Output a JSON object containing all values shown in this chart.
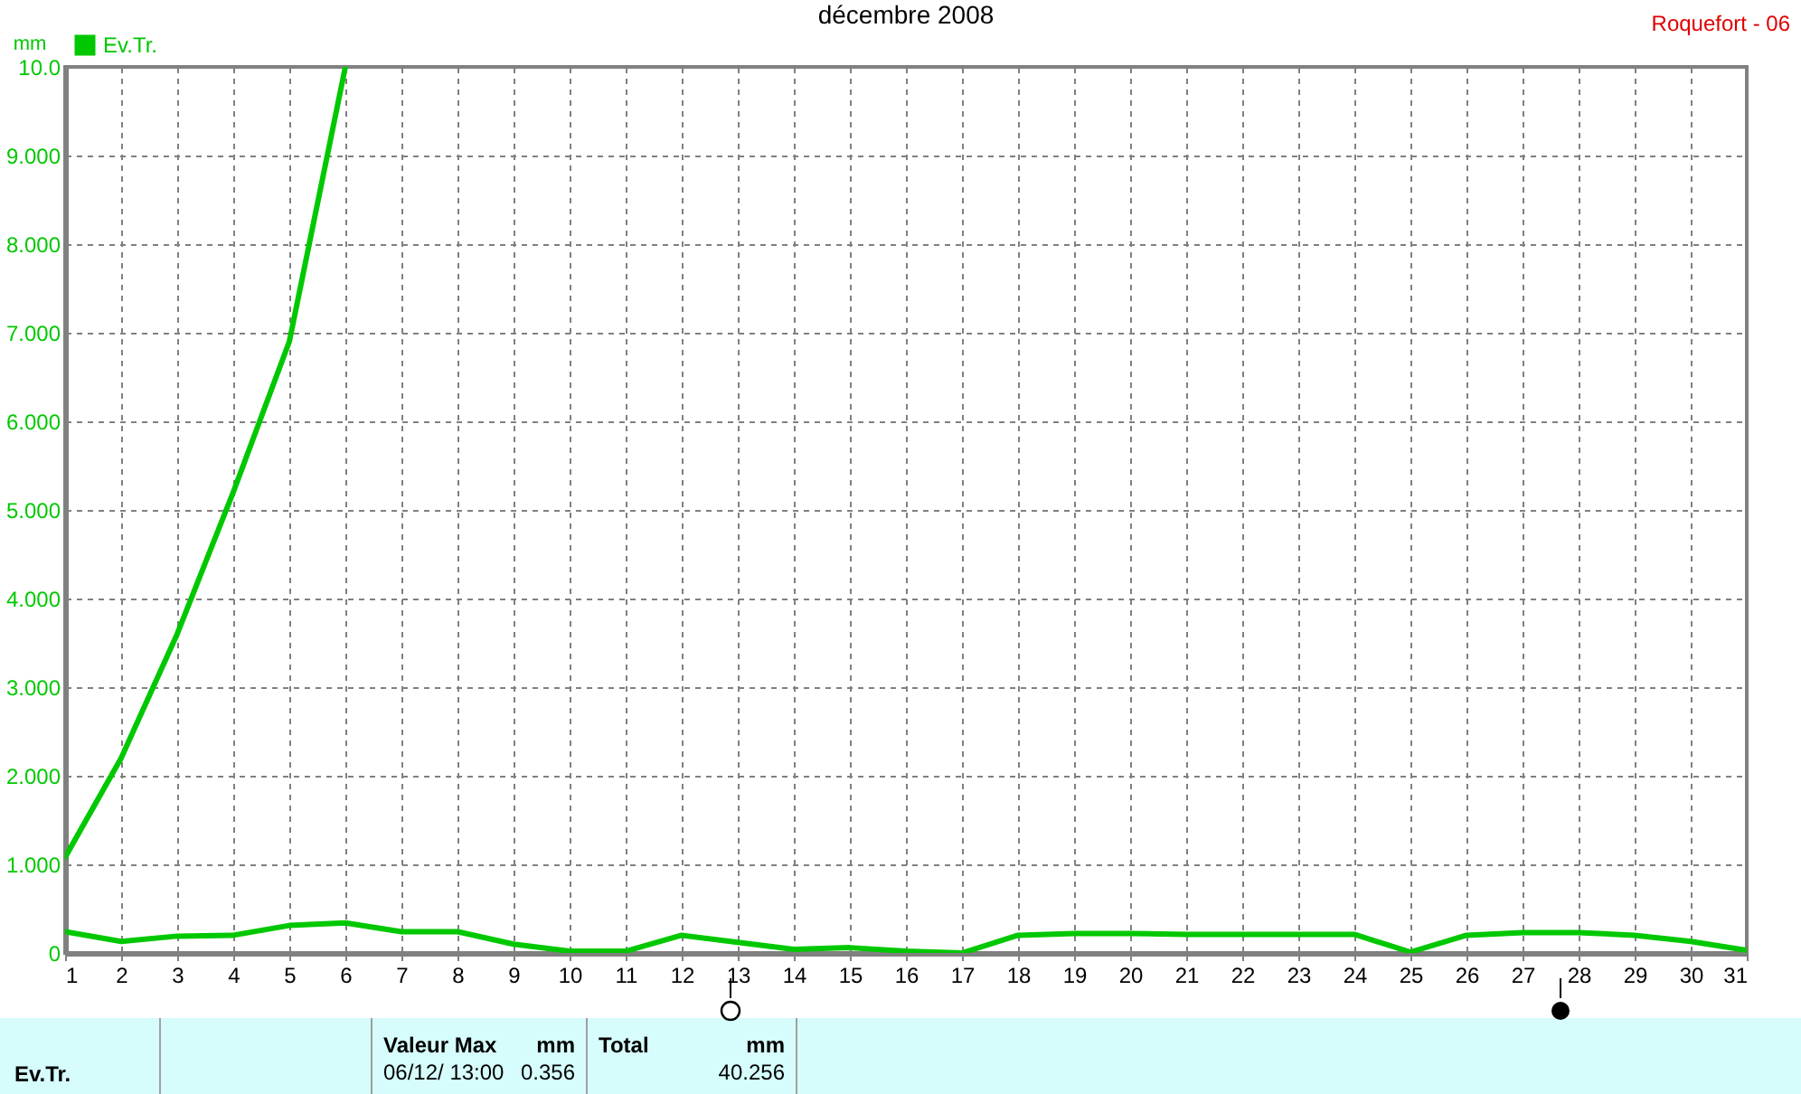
{
  "chart_data": {
    "type": "line",
    "title": "décembre 2008",
    "ylabel": "mm",
    "annotations": [
      "Roquefort - 06",
      "Ev.Tr.",
      "Valeur Max",
      "mm",
      "06/12/ 13:00",
      "0.356",
      "Total",
      "mm",
      "40.256"
    ],
    "x": [
      1,
      2,
      3,
      4,
      5,
      6,
      7,
      8,
      9,
      10,
      11,
      12,
      13,
      14,
      15,
      16,
      17,
      18,
      19,
      20,
      21,
      22,
      23,
      24,
      25,
      26,
      27,
      28,
      29,
      30,
      31
    ],
    "series": [
      {
        "name": "Ev.Tr.",
        "color": "#00c800",
        "values": [
          0.24,
          0.13,
          0.19,
          0.2,
          0.31,
          0.34,
          0.24,
          0.24,
          0.1,
          0.02,
          0.02,
          0.2,
          0.12,
          0.04,
          0.06,
          0.02,
          0,
          0.2,
          0.22,
          0.22,
          0.21,
          0.21,
          0.21,
          0.21,
          0.01,
          0.2,
          0.23,
          0.23,
          0.2,
          0.13,
          0.03
        ]
      },
      {
        "color": "#00c800",
        "values": [
          1.08,
          2.2,
          3.6,
          5.2,
          6.9,
          10.0,
          null,
          null,
          null,
          null,
          null,
          null,
          null,
          null,
          null,
          null,
          null,
          null,
          null,
          null,
          null,
          null,
          null,
          null,
          null,
          null,
          null,
          null,
          null,
          null,
          null
        ]
      }
    ],
    "xlim": [
      1,
      31
    ],
    "xticks": [
      1,
      2,
      3,
      4,
      5,
      6,
      7,
      8,
      9,
      10,
      11,
      12,
      13,
      14,
      15,
      16,
      17,
      18,
      19,
      20,
      21,
      22,
      23,
      24,
      25,
      26,
      27,
      28,
      29,
      30,
      31
    ],
    "ylim": [
      0,
      10
    ],
    "yticks": [
      0,
      {
        "value": 1,
        "label": "1.000"
      },
      {
        "value": 2,
        "label": "2.000"
      },
      {
        "value": 3,
        "label": "3.000"
      },
      {
        "value": 4,
        "label": "4.000"
      },
      {
        "value": 5,
        "label": "5.000"
      },
      {
        "value": 6,
        "label": "6.000"
      },
      {
        "value": 7,
        "label": "7.000"
      },
      {
        "value": 8,
        "label": "8.000"
      },
      {
        "value": 9,
        "label": "9.000"
      },
      {
        "value": 10,
        "label": "10.0"
      }
    ],
    "grid": true,
    "legend": "top left",
    "marker": "none",
    "line_style": "solid"
  }
}
